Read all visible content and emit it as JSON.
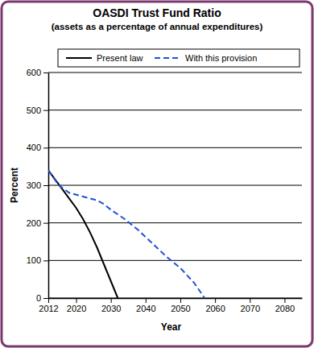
{
  "chart_data": {
    "type": "line",
    "title": "OASDI Trust Fund Ratio",
    "subtitle": "(assets as a percentage of annual expenditures)",
    "x_label": "Year",
    "y_label": "Percent",
    "series": [
      {
        "name": "Present law",
        "color": "#000000",
        "line_style": "solid",
        "x": [
          2012,
          2014,
          2016,
          2018,
          2020,
          2022,
          2024,
          2026,
          2028,
          2030,
          2032
        ],
        "values": [
          340,
          315,
          290,
          265,
          240,
          210,
          175,
          135,
          90,
          45,
          0
        ]
      },
      {
        "name": "With this provision",
        "color": "#1f4fd8",
        "line_style": "dashed",
        "x": [
          2012,
          2015,
          2018,
          2022,
          2026,
          2028,
          2030,
          2034,
          2038,
          2042,
          2046,
          2050,
          2054,
          2057
        ],
        "values": [
          340,
          300,
          280,
          270,
          260,
          250,
          235,
          210,
          180,
          145,
          110,
          80,
          40,
          0
        ]
      }
    ],
    "xlim": [
      2012,
      2085
    ],
    "xticks": [
      2012,
      2020,
      2030,
      2040,
      2050,
      2060,
      2070,
      2080
    ],
    "ylim": [
      0,
      600
    ],
    "yticks": [
      0,
      100,
      200,
      300,
      400,
      500,
      600
    ],
    "grid": true,
    "legend": "top"
  }
}
